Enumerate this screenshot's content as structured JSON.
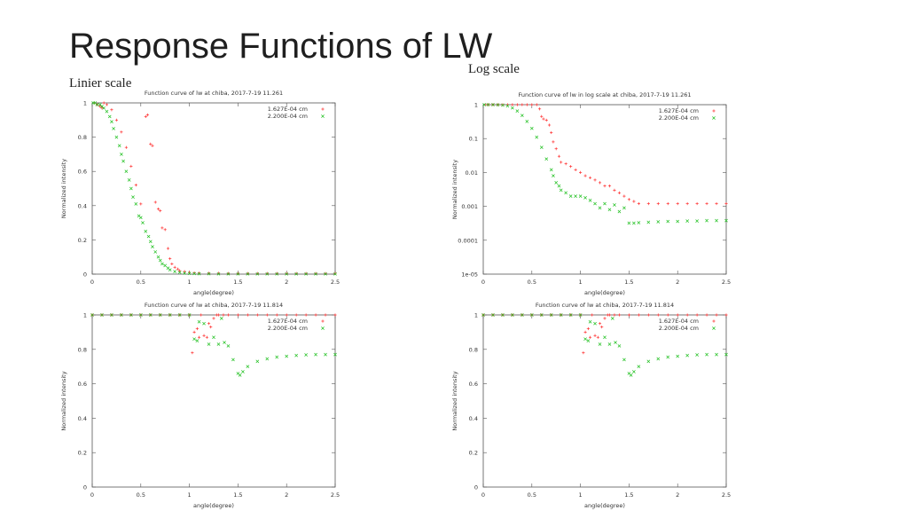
{
  "slide": {
    "title": "Response Functions of LW",
    "linear_label": "Linier scale",
    "log_label": "Log scale"
  },
  "colors": {
    "red": "#ff3030",
    "green": "#20c020",
    "axis": "#555555"
  },
  "chart_data": [
    {
      "type": "scatter",
      "title": "Function curve of lw at chiba, 2017-7-19 11.261",
      "xlabel": "angle(degree)",
      "ylabel": "Normalized intensity",
      "xlim": [
        0,
        2.5
      ],
      "ylim": [
        0,
        1
      ],
      "yscale": "linear",
      "xticks": [
        "0",
        "0.5",
        "1",
        "1.5",
        "2",
        "2.5"
      ],
      "yticks": [
        "0",
        "0.2",
        "0.4",
        "0.6",
        "0.8",
        "1"
      ],
      "legend": "top-right",
      "series": [
        {
          "name": "1.627E-04 cm",
          "color": "#ff3030",
          "marker": "+",
          "x": [
            0.02,
            0.05,
            0.08,
            0.1,
            0.12,
            0.15,
            0.2,
            0.25,
            0.3,
            0.35,
            0.4,
            0.45,
            0.5,
            0.55,
            0.57,
            0.6,
            0.62,
            0.65,
            0.68,
            0.7,
            0.72,
            0.75,
            0.78,
            0.8,
            0.82,
            0.85,
            0.88,
            0.9,
            0.95,
            1.0,
            1.05,
            1.1,
            1.2,
            1.3,
            1.4,
            1.5,
            1.6,
            1.7,
            1.8,
            1.9,
            2.0,
            2.1,
            2.2,
            2.3,
            2.4,
            2.5
          ],
          "y": [
            1,
            0.99,
            0.98,
            0.97,
            1,
            0.99,
            0.96,
            0.9,
            0.83,
            0.74,
            0.63,
            0.52,
            0.41,
            0.92,
            0.93,
            0.76,
            0.75,
            0.42,
            0.38,
            0.37,
            0.27,
            0.26,
            0.15,
            0.09,
            0.06,
            0.04,
            0.03,
            0.02,
            0.015,
            0.01,
            0.008,
            0.006,
            0.005,
            0.005,
            0.004,
            0.004,
            0.004,
            0.004,
            0.004,
            0.004,
            0.004,
            0.004,
            0.004,
            0.004,
            0.004,
            0.004
          ]
        },
        {
          "name": "2.200E-04 cm",
          "color": "#20c020",
          "marker": "x",
          "x": [
            0.01,
            0.03,
            0.05,
            0.08,
            0.1,
            0.12,
            0.15,
            0.18,
            0.2,
            0.22,
            0.25,
            0.28,
            0.3,
            0.32,
            0.35,
            0.38,
            0.4,
            0.42,
            0.45,
            0.48,
            0.5,
            0.52,
            0.55,
            0.58,
            0.6,
            0.62,
            0.65,
            0.68,
            0.7,
            0.72,
            0.75,
            0.78,
            0.8,
            0.85,
            0.9,
            0.95,
            1.0,
            1.05,
            1.1,
            1.2,
            1.3,
            1.4,
            1.5,
            1.6,
            1.7,
            1.8,
            1.9,
            2.0,
            2.1,
            2.2,
            2.3,
            2.4,
            2.5
          ],
          "y": [
            1,
            1,
            0.99,
            0.99,
            0.98,
            0.97,
            0.95,
            0.92,
            0.89,
            0.85,
            0.8,
            0.75,
            0.7,
            0.66,
            0.6,
            0.55,
            0.5,
            0.45,
            0.41,
            0.34,
            0.33,
            0.3,
            0.25,
            0.22,
            0.19,
            0.16,
            0.13,
            0.1,
            0.08,
            0.06,
            0.05,
            0.035,
            0.025,
            0.015,
            0.01,
            0.006,
            0.004,
            0.003,
            0.002,
            0.002,
            0.001,
            0.001,
            0.001,
            0.001,
            0.001,
            0.001,
            0.001,
            0.001,
            0.001,
            0.001,
            0.001,
            0.001,
            0.001
          ]
        }
      ]
    },
    {
      "type": "scatter",
      "title": "Function curve of lw in log scale at chiba, 2017-7-19 11.261",
      "xlabel": "angle(degree)",
      "ylabel": "Normalized intensity",
      "xlim": [
        0,
        2.5
      ],
      "ylim": [
        1e-05,
        1
      ],
      "yscale": "log",
      "xticks": [
        "0",
        "0.5",
        "1",
        "1.5",
        "2",
        "2.5"
      ],
      "yticks": [
        "1e-05",
        "0.0001",
        "0.001",
        "0.01",
        "0.1",
        "1"
      ],
      "legend": "top-right",
      "series": [
        {
          "name": "1.627E-04 cm",
          "color": "#ff3030",
          "marker": "+",
          "x": [
            0.02,
            0.05,
            0.1,
            0.15,
            0.2,
            0.25,
            0.3,
            0.35,
            0.4,
            0.45,
            0.5,
            0.55,
            0.58,
            0.6,
            0.62,
            0.65,
            0.68,
            0.7,
            0.72,
            0.75,
            0.78,
            0.8,
            0.85,
            0.9,
            0.95,
            1.0,
            1.05,
            1.1,
            1.15,
            1.2,
            1.25,
            1.3,
            1.35,
            1.4,
            1.45,
            1.5,
            1.55,
            1.6,
            1.7,
            1.8,
            1.9,
            2.0,
            2.1,
            2.2,
            2.3,
            2.4,
            2.5
          ],
          "y": [
            1,
            1,
            1,
            1,
            1,
            1,
            1,
            1,
            1,
            1,
            1,
            1,
            0.75,
            0.45,
            0.38,
            0.35,
            0.25,
            0.15,
            0.08,
            0.05,
            0.03,
            0.02,
            0.018,
            0.015,
            0.012,
            0.01,
            0.008,
            0.007,
            0.006,
            0.005,
            0.004,
            0.004,
            0.003,
            0.0025,
            0.002,
            0.0016,
            0.0014,
            0.0012,
            0.0012,
            0.0012,
            0.0012,
            0.0012,
            0.0012,
            0.0012,
            0.0012,
            0.0012,
            0.0012
          ]
        },
        {
          "name": "2.200E-04 cm",
          "color": "#20c020",
          "marker": "x",
          "x": [
            0.01,
            0.05,
            0.1,
            0.15,
            0.2,
            0.25,
            0.3,
            0.35,
            0.4,
            0.45,
            0.5,
            0.55,
            0.6,
            0.65,
            0.7,
            0.72,
            0.75,
            0.78,
            0.8,
            0.85,
            0.9,
            0.95,
            1.0,
            1.05,
            1.1,
            1.15,
            1.2,
            1.25,
            1.3,
            1.35,
            1.4,
            1.45,
            1.5,
            1.55,
            1.6,
            1.7,
            1.8,
            1.9,
            2.0,
            2.1,
            2.2,
            2.3,
            2.4,
            2.5
          ],
          "y": [
            1,
            1,
            1,
            0.99,
            0.97,
            0.92,
            0.8,
            0.65,
            0.48,
            0.32,
            0.2,
            0.11,
            0.055,
            0.025,
            0.012,
            0.008,
            0.005,
            0.004,
            0.003,
            0.0025,
            0.002,
            0.002,
            0.002,
            0.0018,
            0.0015,
            0.0012,
            0.0009,
            0.0012,
            0.0008,
            0.0011,
            0.0007,
            0.0009,
            0.00032,
            0.00032,
            0.00033,
            0.00034,
            0.00035,
            0.00036,
            0.00036,
            0.00037,
            0.00037,
            0.00038,
            0.00038,
            0.00038
          ]
        }
      ]
    },
    {
      "type": "scatter",
      "title": "Function curve of lw at chiba, 2017-7-19 11.814",
      "xlabel": "angle(degree)",
      "ylabel": "Normalized intensity",
      "xlim": [
        0,
        2.5
      ],
      "ylim": [
        0,
        1
      ],
      "yscale": "linear",
      "xticks": [
        "0",
        "0.5",
        "1",
        "1.5",
        "2",
        "2.5"
      ],
      "yticks": [
        "0",
        "0.2",
        "0.4",
        "0.6",
        "0.8",
        "1"
      ],
      "legend": "top-right",
      "series": [
        {
          "name": "1.627E-04 cm",
          "color": "#ff3030",
          "marker": "+",
          "x": [
            0.0,
            0.1,
            0.2,
            0.3,
            0.4,
            0.5,
            0.6,
            0.7,
            0.8,
            0.9,
            1.0,
            1.03,
            1.05,
            1.08,
            1.1,
            1.12,
            1.15,
            1.18,
            1.2,
            1.22,
            1.25,
            1.28,
            1.3,
            1.35,
            1.4,
            1.5,
            1.6,
            1.7,
            1.8,
            1.9,
            2.0,
            2.1,
            2.2,
            2.3,
            2.4,
            2.5
          ],
          "y": [
            1,
            1,
            1,
            1,
            1,
            1,
            1,
            1,
            1,
            1,
            1,
            0.78,
            0.9,
            0.92,
            0.87,
            1,
            0.88,
            0.87,
            0.95,
            0.93,
            0.98,
            1,
            1,
            1,
            1,
            1,
            1,
            1,
            1,
            1,
            1,
            1,
            1,
            1,
            1,
            1
          ]
        },
        {
          "name": "2.200E-04 cm",
          "color": "#20c020",
          "marker": "x",
          "x": [
            0.0,
            0.1,
            0.2,
            0.3,
            0.4,
            0.5,
            0.6,
            0.7,
            0.8,
            0.9,
            1.0,
            1.05,
            1.08,
            1.1,
            1.15,
            1.2,
            1.25,
            1.3,
            1.33,
            1.36,
            1.4,
            1.45,
            1.5,
            1.52,
            1.55,
            1.6,
            1.7,
            1.8,
            1.9,
            2.0,
            2.1,
            2.2,
            2.3,
            2.4,
            2.5
          ],
          "y": [
            1,
            1,
            1,
            1,
            1,
            1,
            1,
            1,
            1,
            1,
            1,
            0.86,
            0.85,
            0.96,
            0.95,
            0.83,
            0.87,
            0.83,
            0.98,
            0.84,
            0.82,
            0.74,
            0.66,
            0.65,
            0.67,
            0.7,
            0.73,
            0.745,
            0.755,
            0.76,
            0.765,
            0.768,
            0.77,
            0.77,
            0.77
          ]
        }
      ]
    },
    {
      "type": "scatter",
      "title": "Function curve of lw at chiba, 2017-7-19 11.814",
      "xlabel": "angle(degree)",
      "ylabel": "Normalized intensity",
      "xlim": [
        0,
        2.5
      ],
      "ylim": [
        0,
        1
      ],
      "yscale": "linear",
      "xticks": [
        "0",
        "0.5",
        "1",
        "1.5",
        "2",
        "2.5"
      ],
      "yticks": [
        "0",
        "0.2",
        "0.4",
        "0.6",
        "0.8",
        "1"
      ],
      "legend": "top-right",
      "series": [
        {
          "name": "1.627E-04 cm",
          "color": "#ff3030",
          "marker": "+",
          "x": [
            0.0,
            0.1,
            0.2,
            0.3,
            0.4,
            0.5,
            0.6,
            0.7,
            0.8,
            0.9,
            1.0,
            1.03,
            1.05,
            1.08,
            1.1,
            1.12,
            1.15,
            1.18,
            1.2,
            1.22,
            1.25,
            1.28,
            1.3,
            1.35,
            1.4,
            1.5,
            1.6,
            1.7,
            1.8,
            1.9,
            2.0,
            2.1,
            2.2,
            2.3,
            2.4,
            2.5
          ],
          "y": [
            1,
            1,
            1,
            1,
            1,
            1,
            1,
            1,
            1,
            1,
            1,
            0.78,
            0.9,
            0.92,
            0.87,
            1,
            0.88,
            0.87,
            0.95,
            0.93,
            0.98,
            1,
            1,
            1,
            1,
            1,
            1,
            1,
            1,
            1,
            1,
            1,
            1,
            1,
            1,
            1
          ]
        },
        {
          "name": "2.200E-04 cm",
          "color": "#20c020",
          "marker": "x",
          "x": [
            0.0,
            0.1,
            0.2,
            0.3,
            0.4,
            0.5,
            0.6,
            0.7,
            0.8,
            0.9,
            1.0,
            1.05,
            1.08,
            1.1,
            1.15,
            1.2,
            1.25,
            1.3,
            1.33,
            1.36,
            1.4,
            1.45,
            1.5,
            1.52,
            1.55,
            1.6,
            1.7,
            1.8,
            1.9,
            2.0,
            2.1,
            2.2,
            2.3,
            2.4,
            2.5
          ],
          "y": [
            1,
            1,
            1,
            1,
            1,
            1,
            1,
            1,
            1,
            1,
            1,
            0.86,
            0.85,
            0.96,
            0.95,
            0.83,
            0.87,
            0.83,
            0.98,
            0.84,
            0.82,
            0.74,
            0.66,
            0.65,
            0.67,
            0.7,
            0.73,
            0.745,
            0.755,
            0.76,
            0.765,
            0.768,
            0.77,
            0.77,
            0.77
          ]
        }
      ]
    }
  ]
}
